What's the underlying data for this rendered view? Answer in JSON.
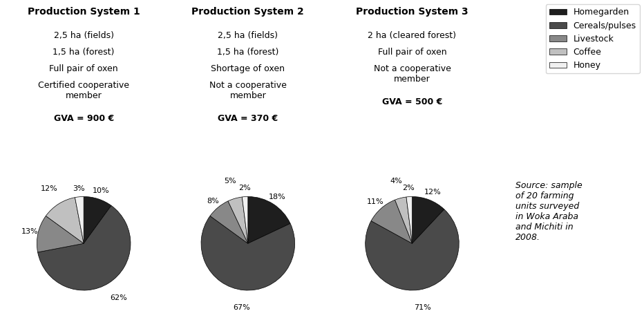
{
  "chart_data": [
    {
      "type": "pie",
      "title": "Production System 1",
      "annotations": [
        "2,5 ha (fields)",
        "1,5 ha (forest)",
        "Full pair of oxen",
        "Certified cooperative\nmember",
        "GVA = 900 €"
      ],
      "categories": [
        "Homegarden",
        "Cereals/pulses",
        "Livestock",
        "Coffee",
        "Honey"
      ],
      "values": [
        10,
        62,
        13,
        12,
        3
      ],
      "value_labels": [
        "10%",
        "62%",
        "13%",
        "12%",
        "3%"
      ],
      "colors": [
        "#1e1e1e",
        "#4a4a4a",
        "#888888",
        "#c0c0c0",
        "#f0f0f0"
      ],
      "data_labels": true
    },
    {
      "type": "pie",
      "title": "Production System 2",
      "annotations": [
        "2,5 ha (fields)",
        "1,5 ha (forest)",
        "Shortage of oxen",
        "Not a cooperative\nmember",
        "GVA = 370 €"
      ],
      "categories": [
        "Homegarden",
        "Cereals/pulses",
        "Livestock",
        "Coffee",
        "Honey"
      ],
      "values": [
        18,
        67,
        8,
        5,
        2
      ],
      "value_labels": [
        "18%",
        "67%",
        "8%",
        "5%",
        "2%"
      ],
      "colors": [
        "#1e1e1e",
        "#4a4a4a",
        "#888888",
        "#c0c0c0",
        "#f0f0f0"
      ],
      "data_labels": true
    },
    {
      "type": "pie",
      "title": "Production System 3",
      "annotations": [
        "2 ha (cleared forest)",
        "Full pair of oxen",
        "Not a cooperative\nmember",
        "GVA = 500 €"
      ],
      "categories": [
        "Homegarden",
        "Cereals/pulses",
        "Livestock",
        "Coffee",
        "Honey"
      ],
      "values": [
        12,
        71,
        11,
        4,
        2
      ],
      "value_labels": [
        "12%",
        "71%",
        "11%",
        "4%",
        "2%"
      ],
      "colors": [
        "#1e1e1e",
        "#4a4a4a",
        "#888888",
        "#c0c0c0",
        "#f0f0f0"
      ],
      "data_labels": true,
      "legend": "upper right"
    }
  ],
  "annotations": [
    "Source: sample\nof 20 farming\nunits surveyed\nin Woka Araba\nand Michiti in\n2008."
  ]
}
